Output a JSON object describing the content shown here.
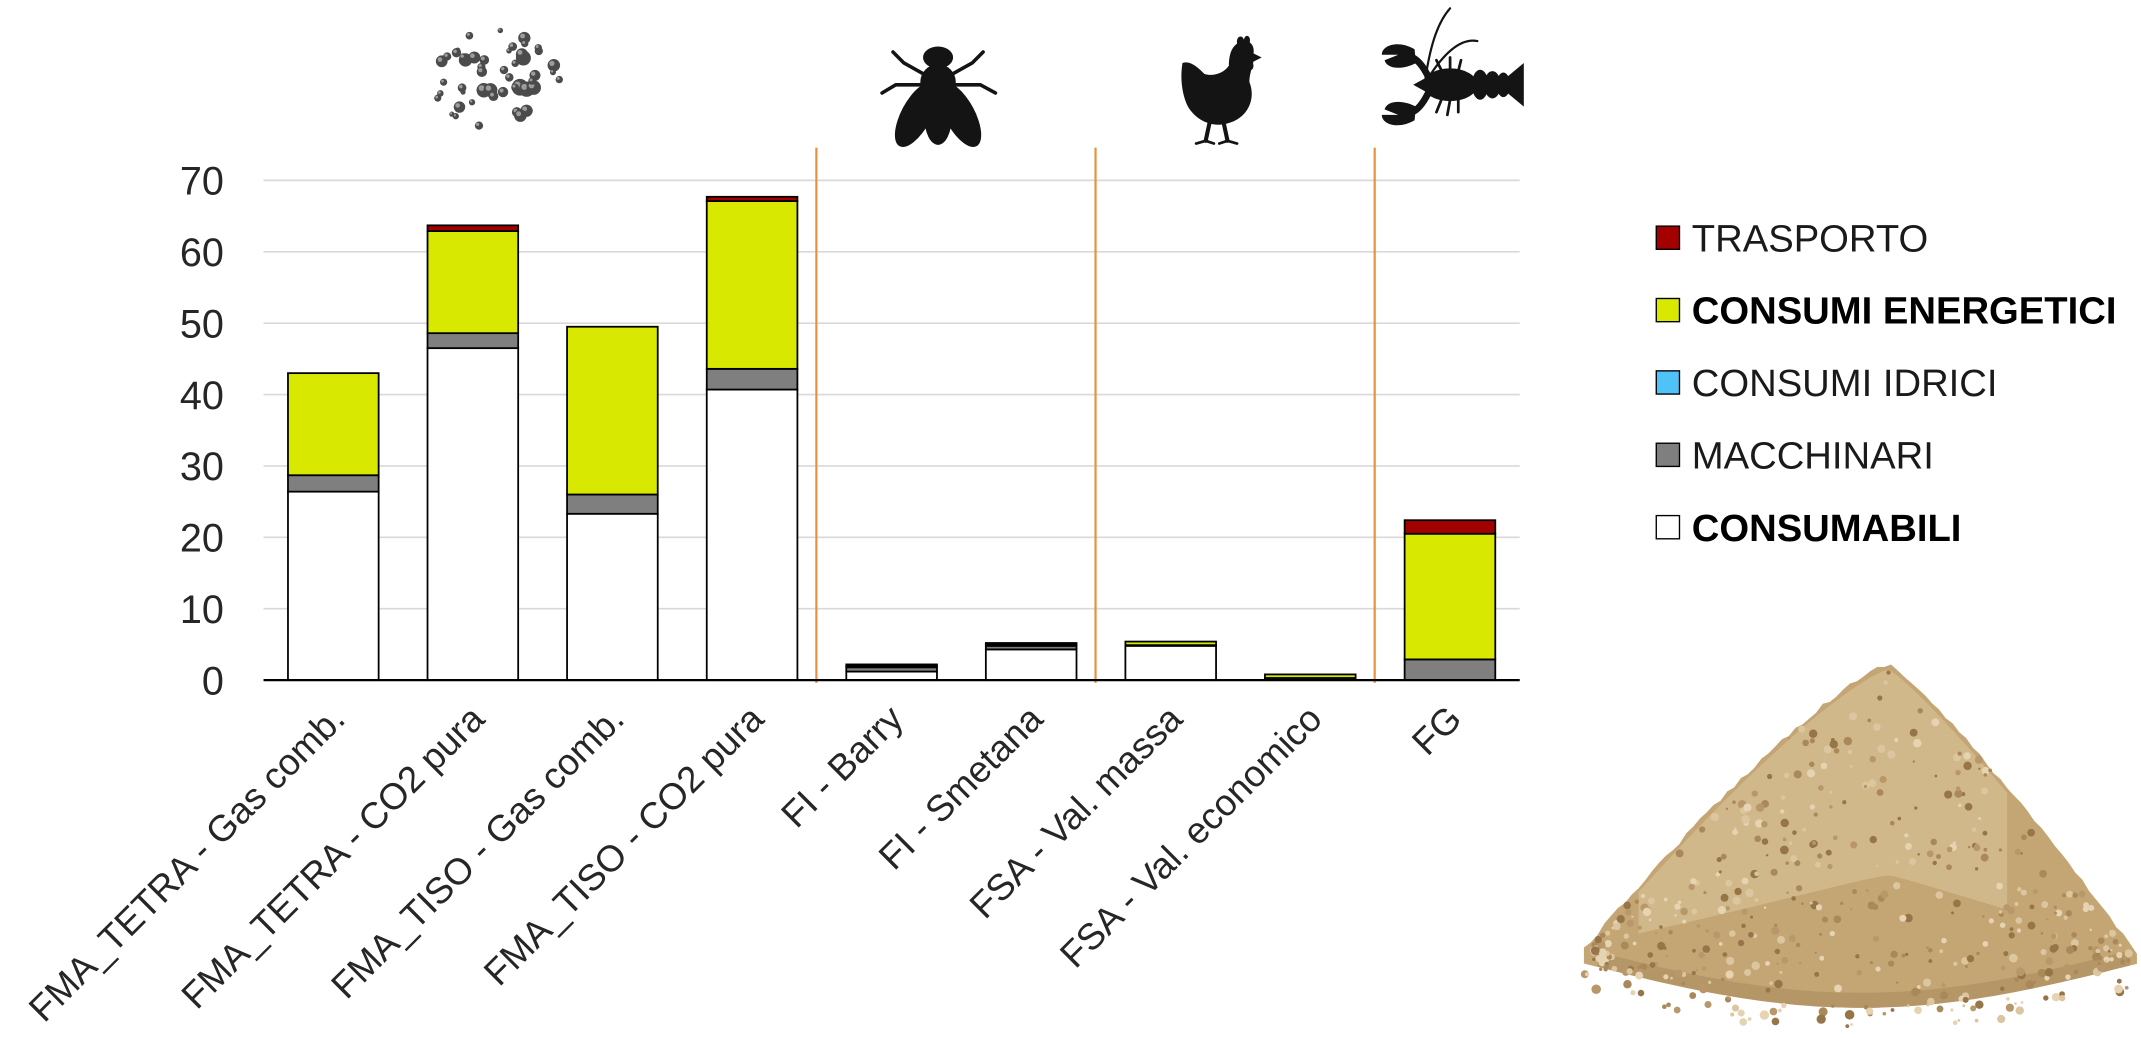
{
  "chart_data": {
    "type": "bar",
    "stacked": true,
    "categories": [
      "FMA_TETRA - Gas comb.",
      "FMA_TETRA - CO2 pura",
      "FMA_TISO - Gas comb.",
      "FMA_TISO - CO2 pura",
      "FI - Barry",
      "FI - Smetana",
      "FSA - Val. massa",
      "FSA - Val. economico",
      "FG"
    ],
    "series": [
      {
        "name": "CONSUMABILI",
        "color": "#ffffff",
        "bold": true,
        "values": [
          26.4,
          46.5,
          23.3,
          40.7,
          1.2,
          4.3,
          4.8,
          0.3,
          0.0
        ]
      },
      {
        "name": "MACCHINARI",
        "color": "#7f7f7f",
        "bold": false,
        "values": [
          2.3,
          2.1,
          2.7,
          2.9,
          0.6,
          0.5,
          0.1,
          0.0,
          2.9
        ]
      },
      {
        "name": "CONSUMI IDRICI",
        "color": "#4fc3f7",
        "bold": false,
        "values": [
          0,
          0,
          0,
          0,
          0,
          0,
          0,
          0,
          0
        ]
      },
      {
        "name": "CONSUMI ENERGETICI",
        "color": "#d8e800",
        "bold": true,
        "values": [
          14.3,
          14.3,
          23.5,
          23.5,
          0.2,
          0.2,
          0.5,
          0.5,
          17.6
        ]
      },
      {
        "name": "TRASPORTO",
        "color": "#a30000",
        "bold": false,
        "values": [
          0.0,
          0.8,
          0.0,
          0.6,
          0.2,
          0.2,
          0.0,
          0.0,
          1.9
        ]
      }
    ],
    "ylim": [
      0,
      70
    ],
    "yticks": [
      0,
      10,
      20,
      30,
      40,
      50,
      60,
      70
    ],
    "grid": true,
    "legend": "right",
    "group_separator_color": "#e8913a"
  },
  "icons": {
    "groups": [
      "pellets-icon",
      "fly-icon",
      "chicken-icon",
      "crayfish-icon"
    ],
    "decoration": "sand-pile-icon"
  }
}
